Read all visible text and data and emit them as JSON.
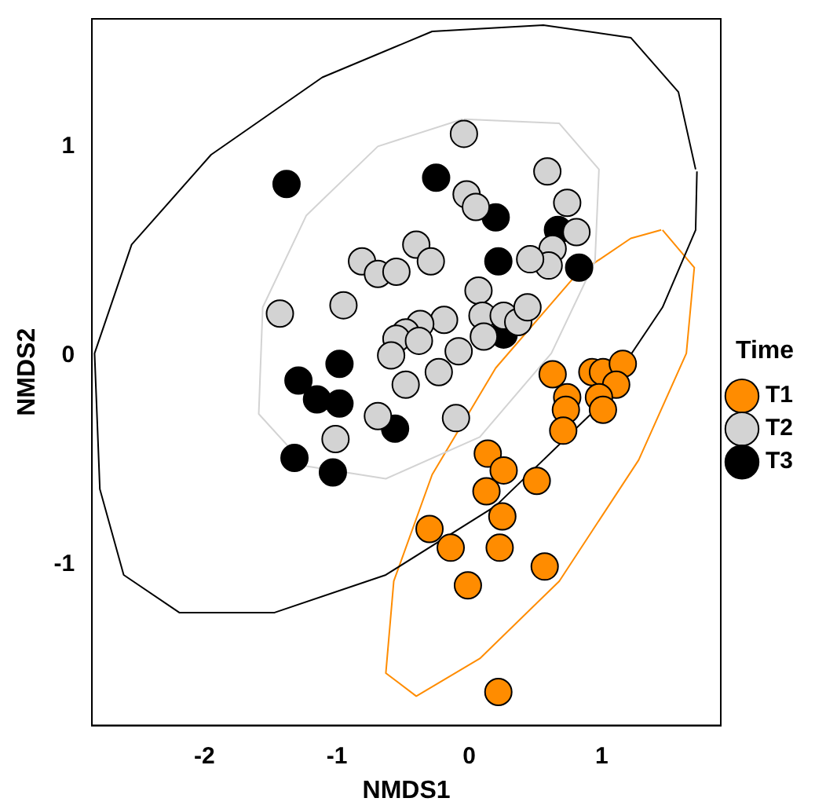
{
  "chart_data": {
    "type": "scatter",
    "xlabel": "NMDS1",
    "ylabel": "NMDS2",
    "legend_title": "Time",
    "legend": "right",
    "grid": false,
    "marker": "circle",
    "xlim": [
      -2.85,
      1.9
    ],
    "ylim": [
      -1.77,
      1.61
    ],
    "xticks": [
      -2,
      -1,
      0,
      1
    ],
    "yticks": [
      -1,
      0,
      1
    ],
    "series": [
      {
        "type": "line",
        "marker": "none",
        "color": "#000000",
        "x": [
          1.71,
          1.58,
          1.22,
          0.56,
          -0.28,
          -1.11,
          -1.95,
          -2.55,
          -2.83,
          -2.79,
          -2.61,
          -2.19,
          -1.47,
          -0.63,
          0.2,
          0.92,
          1.46,
          1.71,
          1.72
        ],
        "values": [
          0.89,
          1.26,
          1.52,
          1.58,
          1.55,
          1.33,
          0.96,
          0.53,
          0.01,
          -0.64,
          -1.05,
          -1.23,
          -1.23,
          -1.05,
          -0.72,
          -0.28,
          0.23,
          0.6,
          0.88
        ]
      },
      {
        "type": "line",
        "marker": "none",
        "color": "#d3d3d3",
        "x": [
          -0.04,
          0.68,
          0.98,
          0.95,
          0.62,
          0.08,
          -0.63,
          -1.23,
          -1.59,
          -1.56,
          -1.23,
          -0.69,
          -0.05
        ],
        "values": [
          1.13,
          1.11,
          0.89,
          0.45,
          0.01,
          -0.39,
          -0.59,
          -0.53,
          -0.28,
          0.23,
          0.67,
          1.0,
          1.13
        ]
      },
      {
        "type": "line",
        "marker": "none",
        "color": "#ff8c00",
        "x": [
          1.46,
          1.7,
          1.64,
          1.28,
          0.68,
          0.08,
          -0.4,
          -0.63,
          -0.57,
          -0.28,
          0.2,
          0.8,
          1.22,
          1.45
        ],
        "values": [
          0.6,
          0.42,
          0.01,
          -0.5,
          -1.08,
          -1.45,
          -1.63,
          -1.52,
          -1.08,
          -0.57,
          -0.06,
          0.38,
          0.56,
          0.6
        ]
      },
      {
        "name": "T1",
        "color": "#ff8c00",
        "x": [
          0.63,
          0.93,
          1.01,
          1.16,
          1.11,
          0.74,
          0.73,
          0.98,
          1.01,
          0.71,
          0.14,
          0.26,
          0.51,
          0.13,
          0.25,
          -0.3,
          -0.14,
          0.23,
          0.57,
          -0.01,
          0.22
        ],
        "values": [
          -0.09,
          -0.08,
          -0.08,
          -0.04,
          -0.14,
          -0.2,
          -0.26,
          -0.2,
          -0.26,
          -0.36,
          -0.47,
          -0.55,
          -0.6,
          -0.65,
          -0.77,
          -0.83,
          -0.92,
          -0.92,
          -1.01,
          -1.1,
          -1.61
        ]
      },
      {
        "name": "T2",
        "color": "#d3d3d3",
        "x": [
          -0.04,
          0.59,
          -0.02,
          0.05,
          0.74,
          0.81,
          0.63,
          0.6,
          0.46,
          -0.4,
          -0.29,
          -0.81,
          -0.69,
          -0.55,
          0.07,
          -0.95,
          -1.43,
          0.1,
          0.26,
          0.37,
          0.44,
          0.11,
          -0.19,
          -0.37,
          -0.48,
          -0.55,
          -0.38,
          -0.59,
          -0.08,
          -0.23,
          -0.48,
          -0.69,
          -1.01,
          -0.1
        ],
        "values": [
          1.06,
          0.88,
          0.77,
          0.71,
          0.73,
          0.59,
          0.51,
          0.43,
          0.46,
          0.53,
          0.45,
          0.45,
          0.39,
          0.4,
          0.31,
          0.24,
          0.2,
          0.19,
          0.19,
          0.16,
          0.23,
          0.09,
          0.17,
          0.15,
          0.11,
          0.08,
          0.07,
          0.0,
          0.02,
          -0.08,
          -0.14,
          -0.29,
          -0.4,
          -0.3
        ]
      },
      {
        "name": "T3",
        "color": "#000000",
        "x": [
          -1.38,
          -0.25,
          0.2,
          0.67,
          0.22,
          0.83,
          0.26,
          -0.98,
          -1.29,
          -1.15,
          -0.98,
          -0.56,
          -1.32,
          -1.03
        ],
        "values": [
          0.82,
          0.85,
          0.66,
          0.6,
          0.45,
          0.42,
          0.1,
          -0.04,
          -0.12,
          -0.21,
          -0.23,
          -0.35,
          -0.49,
          -0.56
        ]
      }
    ]
  }
}
